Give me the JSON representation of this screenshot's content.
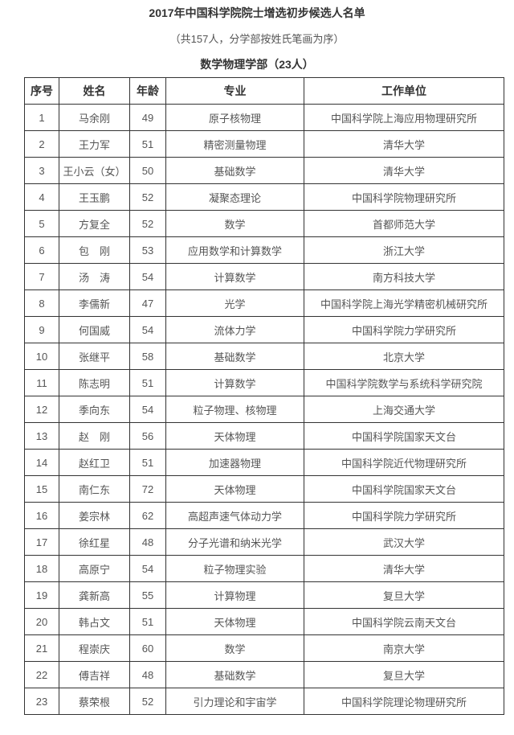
{
  "title": "2017年中国科学院院士增选初步候选人名单",
  "subtitle": "（共157人，分学部按姓氏笔画为序）",
  "section": "数学物理学部（23人）",
  "columns": [
    "序号",
    "姓名",
    "年龄",
    "专业",
    "工作单位"
  ],
  "rows": [
    [
      "1",
      "马余刚",
      "49",
      "原子核物理",
      "中国科学院上海应用物理研究所"
    ],
    [
      "2",
      "王力军",
      "51",
      "精密测量物理",
      "清华大学"
    ],
    [
      "3",
      "王小云（女）",
      "50",
      "基础数学",
      "清华大学"
    ],
    [
      "4",
      "王玉鹏",
      "52",
      "凝聚态理论",
      "中国科学院物理研究所"
    ],
    [
      "5",
      "方复全",
      "52",
      "数学",
      "首都师范大学"
    ],
    [
      "6",
      "包　刚",
      "53",
      "应用数学和计算数学",
      "浙江大学"
    ],
    [
      "7",
      "汤　涛",
      "54",
      "计算数学",
      "南方科技大学"
    ],
    [
      "8",
      "李儒新",
      "47",
      "光学",
      "中国科学院上海光学精密机械研究所"
    ],
    [
      "9",
      "何国威",
      "54",
      "流体力学",
      "中国科学院力学研究所"
    ],
    [
      "10",
      "张继平",
      "58",
      "基础数学",
      "北京大学"
    ],
    [
      "11",
      "陈志明",
      "51",
      "计算数学",
      "中国科学院数学与系统科学研究院"
    ],
    [
      "12",
      "季向东",
      "54",
      "粒子物理、核物理",
      "上海交通大学"
    ],
    [
      "13",
      "赵　刚",
      "56",
      "天体物理",
      "中国科学院国家天文台"
    ],
    [
      "14",
      "赵红卫",
      "51",
      "加速器物理",
      "中国科学院近代物理研究所"
    ],
    [
      "15",
      "南仁东",
      "72",
      "天体物理",
      "中国科学院国家天文台"
    ],
    [
      "16",
      "姜宗林",
      "62",
      "高超声速气体动力学",
      "中国科学院力学研究所"
    ],
    [
      "17",
      "徐红星",
      "48",
      "分子光谱和纳米光学",
      "武汉大学"
    ],
    [
      "18",
      "高原宁",
      "54",
      "粒子物理实验",
      "清华大学"
    ],
    [
      "19",
      "龚新高",
      "55",
      "计算物理",
      "复旦大学"
    ],
    [
      "20",
      "韩占文",
      "51",
      "天体物理",
      "中国科学院云南天文台"
    ],
    [
      "21",
      "程崇庆",
      "60",
      "数学",
      "南京大学"
    ],
    [
      "22",
      "傅吉祥",
      "48",
      "基础数学",
      "复旦大学"
    ],
    [
      "23",
      "蔡荣根",
      "52",
      "引力理论和宇宙学",
      "中国科学院理论物理研究所"
    ]
  ]
}
